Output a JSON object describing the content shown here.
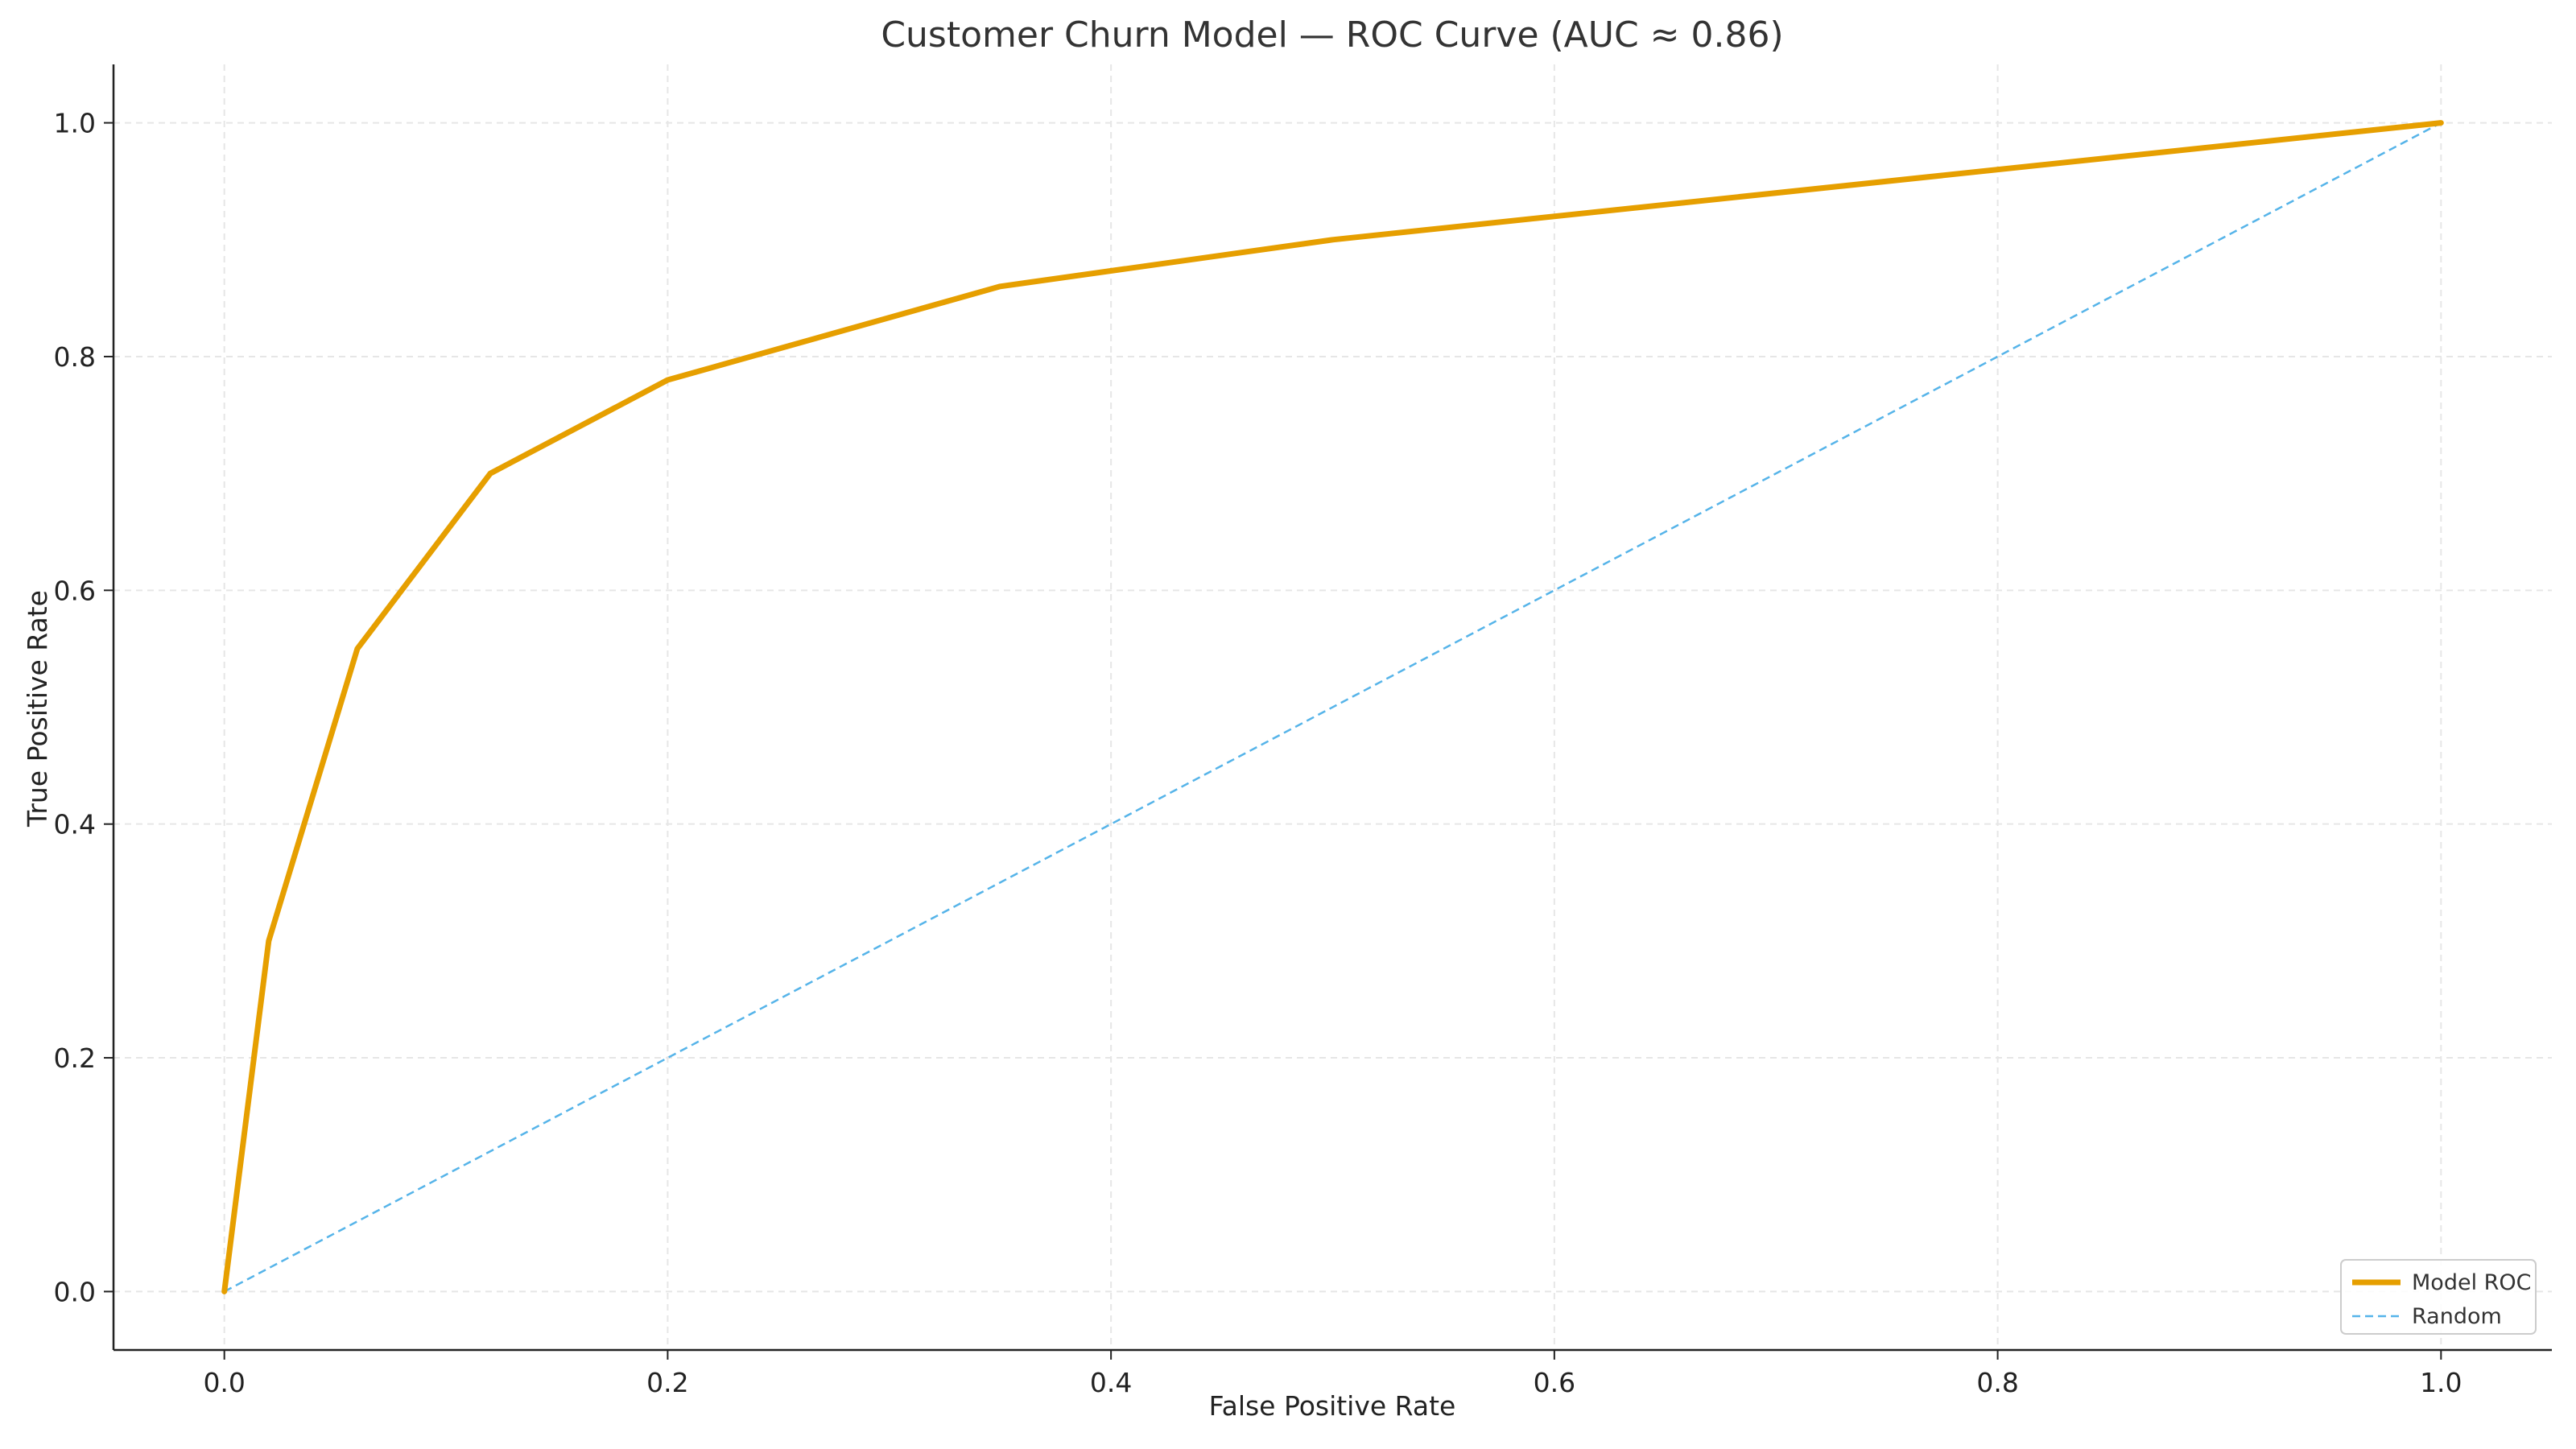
{
  "chart_data": {
    "type": "line",
    "title": "Customer Churn Model — ROC Curve (AUC ≈ 0.86)",
    "xlabel": "False Positive Rate",
    "ylabel": "True Positive Rate",
    "xlim": [
      -0.05,
      1.05
    ],
    "ylim": [
      -0.05,
      1.05
    ],
    "xticks": [
      "0.0",
      "0.2",
      "0.4",
      "0.6",
      "0.8",
      "1.0"
    ],
    "yticks": [
      "0.0",
      "0.2",
      "0.4",
      "0.6",
      "0.8",
      "1.0"
    ],
    "grid": true,
    "legend_position": "bottom-right",
    "series": [
      {
        "name": "Model ROC",
        "color": "#E69F00",
        "style": "solid",
        "x": [
          0.0,
          0.02,
          0.06,
          0.12,
          0.2,
          0.35,
          0.5,
          1.0
        ],
        "y": [
          0.0,
          0.3,
          0.55,
          0.7,
          0.78,
          0.86,
          0.9,
          1.0
        ]
      },
      {
        "name": "Random",
        "color": "#56B4E9",
        "style": "dashed",
        "x": [
          0.0,
          1.0
        ],
        "y": [
          0.0,
          1.0
        ]
      }
    ]
  }
}
